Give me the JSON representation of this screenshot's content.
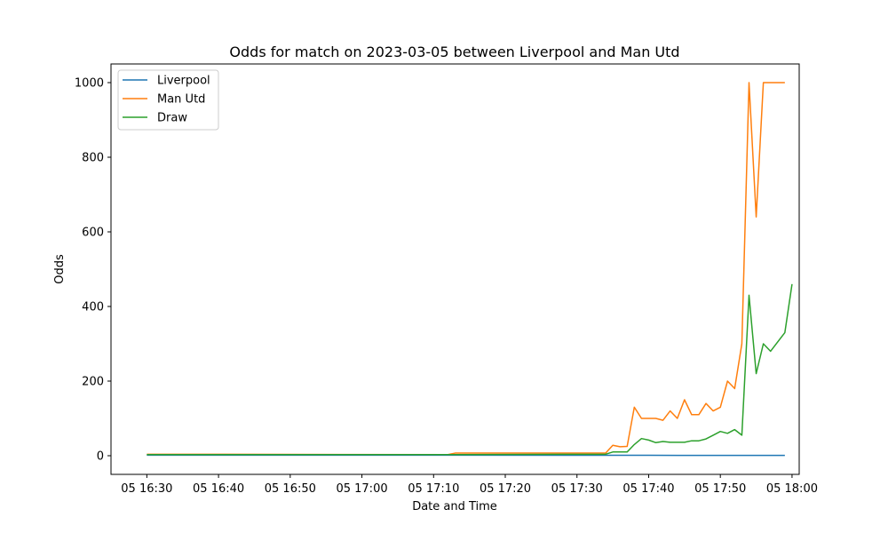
{
  "chart_data": {
    "type": "line",
    "title": "Odds for match on 2023-03-05 between Liverpool and Man Utd",
    "xlabel": "Date and Time",
    "ylabel": "Odds",
    "xlim": [
      "05 16:25",
      "05 18:01"
    ],
    "ylim": [
      -50,
      1050
    ],
    "x_ticks": [
      "05 16:30",
      "05 16:40",
      "05 16:50",
      "05 17:00",
      "05 17:10",
      "05 17:20",
      "05 17:30",
      "05 17:40",
      "05 17:50",
      "05 18:00"
    ],
    "y_ticks": [
      0,
      200,
      400,
      600,
      800,
      1000
    ],
    "grid": false,
    "legend_position": "top-left",
    "series": [
      {
        "name": "Liverpool",
        "color": "#1f77b4",
        "points": [
          [
            "05 16:30",
            1.5
          ],
          [
            "05 17:00",
            1.5
          ],
          [
            "05 17:12",
            1.4
          ],
          [
            "05 17:30",
            1.2
          ],
          [
            "05 17:40",
            1.05
          ],
          [
            "05 17:50",
            1.0
          ],
          [
            "05 17:59",
            1.0
          ]
        ]
      },
      {
        "name": "Man Utd",
        "color": "#ff7f0e",
        "points": [
          [
            "05 16:30",
            4
          ],
          [
            "05 17:12",
            3
          ],
          [
            "05 17:13",
            7
          ],
          [
            "05 17:34",
            7
          ],
          [
            "05 17:35",
            28
          ],
          [
            "05 17:36",
            24
          ],
          [
            "05 17:37",
            25
          ],
          [
            "05 17:38",
            130
          ],
          [
            "05 17:39",
            100
          ],
          [
            "05 17:40",
            100
          ],
          [
            "05 17:41",
            100
          ],
          [
            "05 17:42",
            95
          ],
          [
            "05 17:43",
            120
          ],
          [
            "05 17:44",
            100
          ],
          [
            "05 17:45",
            150
          ],
          [
            "05 17:46",
            110
          ],
          [
            "05 17:47",
            110
          ],
          [
            "05 17:48",
            140
          ],
          [
            "05 17:49",
            120
          ],
          [
            "05 17:50",
            130
          ],
          [
            "05 17:51",
            200
          ],
          [
            "05 17:52",
            180
          ],
          [
            "05 17:53",
            300
          ],
          [
            "05 17:54",
            1000
          ],
          [
            "05 17:55",
            640
          ],
          [
            "05 17:56",
            1000
          ],
          [
            "05 17:59",
            1000
          ]
        ]
      },
      {
        "name": "Draw",
        "color": "#2ca02c",
        "points": [
          [
            "05 16:30",
            3
          ],
          [
            "05 17:12",
            3
          ],
          [
            "05 17:13",
            3
          ],
          [
            "05 17:34",
            4
          ],
          [
            "05 17:35",
            10
          ],
          [
            "05 17:37",
            10
          ],
          [
            "05 17:38",
            30
          ],
          [
            "05 17:39",
            46
          ],
          [
            "05 17:40",
            42
          ],
          [
            "05 17:41",
            35
          ],
          [
            "05 17:42",
            38
          ],
          [
            "05 17:43",
            36
          ],
          [
            "05 17:45",
            36
          ],
          [
            "05 17:46",
            40
          ],
          [
            "05 17:47",
            40
          ],
          [
            "05 17:48",
            45
          ],
          [
            "05 17:49",
            55
          ],
          [
            "05 17:50",
            65
          ],
          [
            "05 17:51",
            60
          ],
          [
            "05 17:52",
            70
          ],
          [
            "05 17:53",
            55
          ],
          [
            "05 17:54",
            430
          ],
          [
            "05 17:55",
            220
          ],
          [
            "05 17:56",
            300
          ],
          [
            "05 17:57",
            280
          ],
          [
            "05 17:59",
            330
          ],
          [
            "05 18:00",
            460
          ]
        ]
      }
    ]
  }
}
